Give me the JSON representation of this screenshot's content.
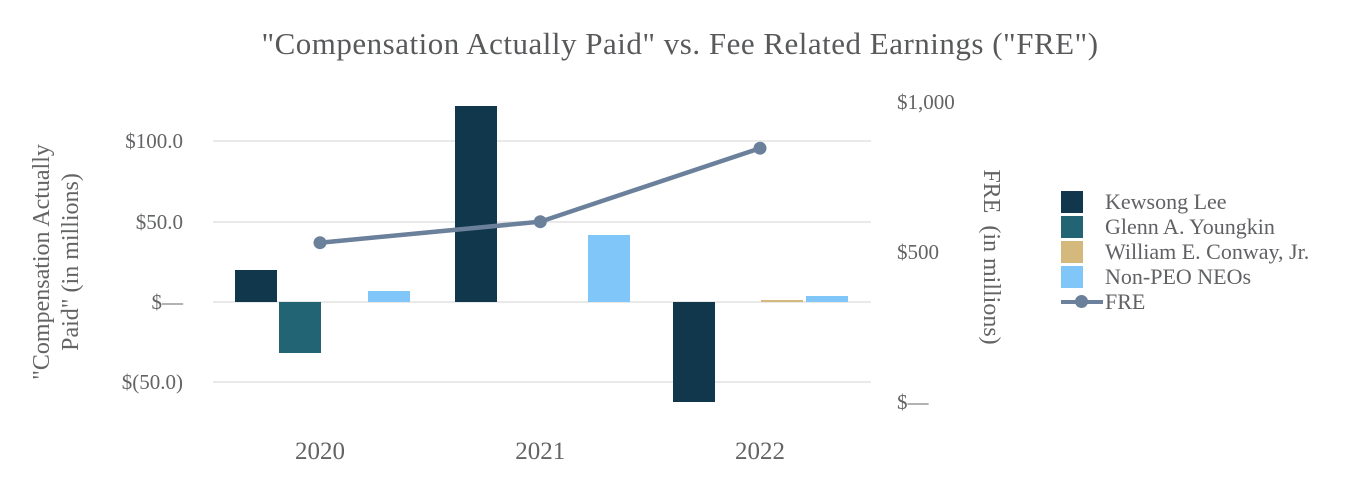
{
  "chart_data": {
    "type": "combo-bar-line-dual-axis",
    "title": "\"Compensation Actually Paid\" vs. Fee Related Earnings (\"FRE\")",
    "units": "USD millions",
    "categories": [
      "2020",
      "2021",
      "2022"
    ],
    "bar_series": [
      {
        "name": "Kewsong Lee",
        "color": "#10374b",
        "values": [
          20,
          122,
          -62
        ]
      },
      {
        "name": "Glenn A. Youngkin",
        "color": "#226474",
        "values": [
          -32,
          null,
          null
        ]
      },
      {
        "name": "William E. Conway, Jr.",
        "color": "#d5b87b",
        "values": [
          null,
          null,
          1
        ]
      },
      {
        "name": "Non-PEO NEOs",
        "color": "#80c6f8",
        "values": [
          7,
          42,
          4
        ]
      }
    ],
    "line_series": {
      "name": "FRE",
      "color": "#6b809b",
      "values": [
        530,
        600,
        845
      ]
    },
    "left_axis": {
      "title_line1": "\"Compensation Actually",
      "title_line2": "Paid\" (in millions)",
      "ticks": [
        {
          "value": 100,
          "label": "$100.0"
        },
        {
          "value": 50,
          "label": "$50.0"
        },
        {
          "value": 0,
          "label": "$—"
        },
        {
          "value": -50,
          "label": "$(50.0)"
        }
      ],
      "range": [
        -75,
        135
      ]
    },
    "right_axis": {
      "title": "FRE  (in millions)",
      "ticks": [
        {
          "value": 1000,
          "label": "$1,000"
        },
        {
          "value": 500,
          "label": "$500"
        },
        {
          "value": 0,
          "label": "$—"
        }
      ],
      "range": [
        0,
        1000
      ]
    },
    "legend": {
      "position": "right",
      "entries": [
        "Kewsong Lee",
        "Glenn A. Youngkin",
        "William E. Conway, Jr.",
        "Non-PEO NEOs",
        "FRE"
      ]
    },
    "grid": "horizontal-light"
  },
  "colors": {
    "grid": "#e9e9e9",
    "title_text": "#58595b",
    "axis_text": "#636466",
    "legend_text": "#606164"
  }
}
